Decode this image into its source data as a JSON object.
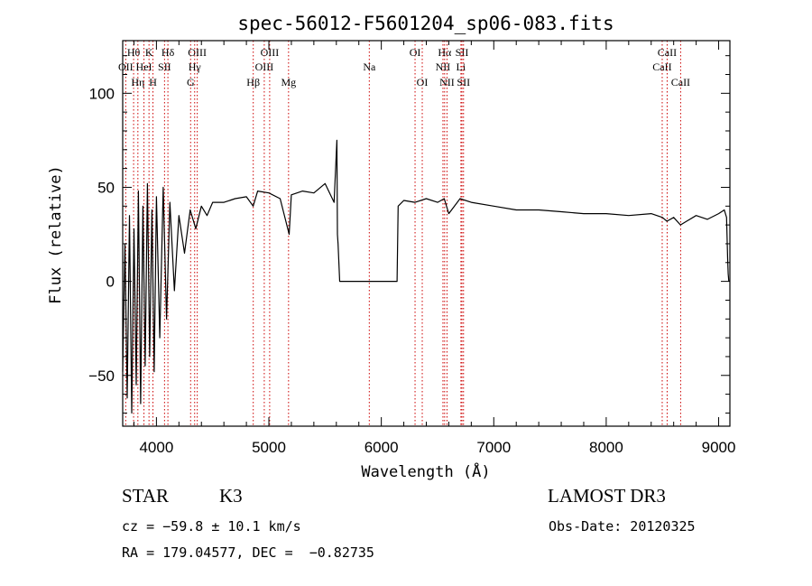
{
  "chart_data": {
    "type": "line",
    "title": "spec-56012-F5601204_sp06-083.fits",
    "xlabel": "Wavelength (Å)",
    "ylabel": "Flux (relative)",
    "xlim": [
      3700,
      9100
    ],
    "ylim": [
      -77,
      128
    ],
    "x_ticks": [
      4000,
      5000,
      6000,
      7000,
      8000,
      9000
    ],
    "y_ticks": [
      -50,
      0,
      50,
      100
    ],
    "x_tick_labels": [
      "4000",
      "5000",
      "6000",
      "7000",
      "8000",
      "9000"
    ],
    "y_tick_labels": [
      "−50",
      "0",
      "50",
      "100"
    ],
    "series": [
      {
        "name": "flux",
        "x": [
          3700,
          3720,
          3740,
          3760,
          3780,
          3800,
          3820,
          3840,
          3860,
          3880,
          3900,
          3920,
          3940,
          3960,
          3980,
          4000,
          4030,
          4060,
          4090,
          4120,
          4160,
          4200,
          4250,
          4300,
          4350,
          4400,
          4450,
          4500,
          4600,
          4700,
          4800,
          4860,
          4900,
          5000,
          5100,
          5180,
          5200,
          5300,
          5400,
          5500,
          5580,
          5605,
          5610,
          5615,
          5630,
          5640,
          6140,
          6150,
          6200,
          6300,
          6400,
          6500,
          6560,
          6600,
          6700,
          6800,
          7000,
          7200,
          7400,
          7600,
          7800,
          8000,
          8200,
          8400,
          8500,
          8540,
          8600,
          8660,
          8800,
          8900,
          9000,
          9050,
          9070,
          9080,
          9085,
          9090
        ],
        "y": [
          -48,
          20,
          -62,
          35,
          -70,
          28,
          -55,
          48,
          -65,
          40,
          -45,
          52,
          -40,
          38,
          -48,
          45,
          -30,
          50,
          -20,
          42,
          -5,
          35,
          15,
          38,
          28,
          40,
          35,
          42,
          42,
          44,
          45,
          40,
          48,
          47,
          44,
          25,
          46,
          48,
          47,
          52,
          42,
          75,
          25,
          20,
          0,
          0,
          0,
          40,
          43,
          42,
          44,
          42,
          44,
          36,
          44,
          42,
          40,
          38,
          38,
          37,
          36,
          36,
          35,
          36,
          34,
          32,
          34,
          30,
          35,
          33,
          36,
          38,
          34,
          12,
          4,
          0
        ],
        "color": "#000000"
      }
    ],
    "emission_lines": [
      {
        "label": "Hθ",
        "x": 3797,
        "row": 1
      },
      {
        "label": "OII",
        "x": 3727,
        "row": 2
      },
      {
        "label": "Hη",
        "x": 3835,
        "row": 3
      },
      {
        "label": "HeI",
        "x": 3889,
        "row": 2
      },
      {
        "label": "K",
        "x": 3934,
        "row": 1
      },
      {
        "label": "H",
        "x": 3969,
        "row": 3
      },
      {
        "label": "SII",
        "x": 4072,
        "row": 2
      },
      {
        "label": "Hδ",
        "x": 4102,
        "row": 1
      },
      {
        "label": "G",
        "x": 4304,
        "row": 3
      },
      {
        "label": "OIII",
        "x": 4363,
        "row": 1
      },
      {
        "label": "Hγ",
        "x": 4340,
        "row": 2
      },
      {
        "label": "Hβ",
        "x": 4861,
        "row": 3
      },
      {
        "label": "OIII",
        "x": 4959,
        "row": 2
      },
      {
        "label": "OIII",
        "x": 5007,
        "row": 1
      },
      {
        "label": "Mg",
        "x": 5175,
        "row": 3
      },
      {
        "label": "Na",
        "x": 5893,
        "row": 2
      },
      {
        "label": "OI",
        "x": 6300,
        "row": 1
      },
      {
        "label": "OI",
        "x": 6364,
        "row": 3
      },
      {
        "label": "Hα",
        "x": 6563,
        "row": 1
      },
      {
        "label": "NII",
        "x": 6548,
        "row": 2
      },
      {
        "label": "NII",
        "x": 6584,
        "row": 3
      },
      {
        "label": "SII",
        "x": 6717,
        "row": 1
      },
      {
        "label": "Li",
        "x": 6708,
        "row": 2
      },
      {
        "label": "SII",
        "x": 6731,
        "row": 3
      },
      {
        "label": "CaII",
        "x": 8498,
        "row": 2
      },
      {
        "label": "CaII",
        "x": 8542,
        "row": 1
      },
      {
        "label": "CaII",
        "x": 8662,
        "row": 3
      }
    ]
  },
  "info": {
    "class": "STAR",
    "subclass": "K3",
    "survey": "LAMOST DR3",
    "redshift": "cz = −59.8 ± 10.1 km/s",
    "obs_date": "Obs-Date: 20120325",
    "coords": "RA = 179.04577, DEC =  −0.82735"
  }
}
